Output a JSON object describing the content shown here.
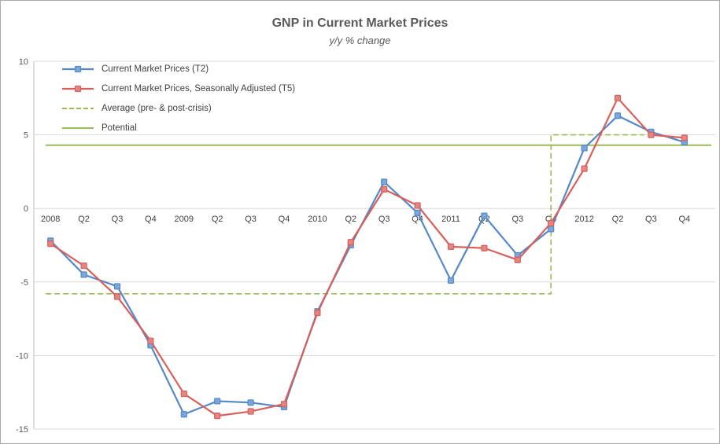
{
  "title": "GNP in Current Market Prices",
  "subtitle": "y/y % change",
  "chart_data": {
    "type": "line",
    "categories": [
      "2008",
      "Q2",
      "Q3",
      "Q4",
      "2009",
      "Q2",
      "Q3",
      "Q4",
      "2010",
      "Q2",
      "Q3",
      "Q4",
      "2011",
      "Q2",
      "Q3",
      "Q4",
      "2012",
      "Q2",
      "Q3",
      "Q4"
    ],
    "series": [
      {
        "name": "Current Market Prices (T2)",
        "color": "#5488c7",
        "marker_fill": "#7da6d8",
        "values": [
          -2.2,
          -4.5,
          -5.3,
          -9.3,
          -14.0,
          -13.1,
          -13.2,
          -13.5,
          -7.0,
          -2.5,
          1.8,
          -0.3,
          -4.9,
          -0.5,
          -3.2,
          -1.4,
          4.1,
          6.3,
          5.2,
          4.5
        ]
      },
      {
        "name": "Current Market Prices, Seasonally Adjusted (T5)",
        "color": "#d6605c",
        "marker_fill": "#e28682",
        "values": [
          -2.4,
          -3.9,
          -6.0,
          -9.0,
          -12.6,
          -14.1,
          -13.8,
          -13.3,
          -7.1,
          -2.3,
          1.3,
          0.2,
          -2.6,
          -2.7,
          -3.5,
          -1.0,
          2.7,
          7.5,
          5.0,
          4.8
        ]
      }
    ],
    "reference_lines": [
      {
        "name": "Average (pre- & post-crisis)",
        "style": "dashed",
        "color": "#9bbb59",
        "segments": [
          {
            "from_index": 0,
            "to_index": 15,
            "value": -5.8
          },
          {
            "from_index": 15,
            "to_index": 17.8,
            "value": 5.0
          }
        ]
      },
      {
        "name": "Potential",
        "style": "solid",
        "color": "#9bbb59",
        "value": 4.3
      }
    ],
    "ylim": [
      -15,
      10
    ],
    "yticks": [
      10,
      5,
      0,
      -5,
      -10,
      -15
    ],
    "grid": true,
    "legend_position": "top-left"
  }
}
